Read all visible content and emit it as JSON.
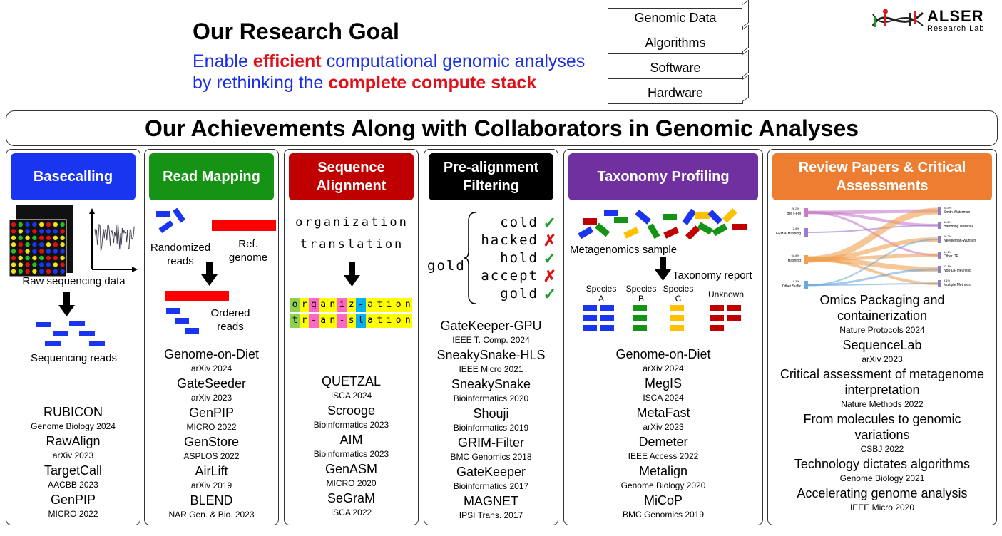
{
  "goal": {
    "title": "Our Research Goal",
    "line1_a": "Enable ",
    "line1_b": "efficient",
    "line1_c": " computational genomic analyses",
    "line2_a": "by rethinking the ",
    "line2_b": "complete compute stack"
  },
  "stack": [
    "Genomic Data",
    "Algorithms",
    "Software",
    "Hardware"
  ],
  "logo": {
    "name": "ALSER",
    "sub": "Research Lab"
  },
  "banner": "Our Achievements Along with Collaborators in Genomic Analyses",
  "colors": {
    "blue": "#1a35f0",
    "green": "#149314",
    "red": "#c00000",
    "black": "#000000",
    "purple": "#7030a0",
    "orange": "#ed7d31"
  },
  "columns": {
    "basecalling": {
      "title": "Basecalling",
      "labels": {
        "raw": "Raw sequencing data",
        "reads": "Sequencing reads"
      },
      "pubs": [
        {
          "name": "RUBICON",
          "venue": "Genome Biology 2024"
        },
        {
          "name": "RawAlign",
          "venue": "arXiv 2023"
        },
        {
          "name": "TargetCall",
          "venue": "AACBB 2023"
        },
        {
          "name": "GenPIP",
          "venue": "MICRO 2022"
        }
      ]
    },
    "readmapping": {
      "title": "Read Mapping",
      "labels": {
        "random": "Randomized\nreads",
        "ref": "Ref.\ngenome",
        "ordered": "Ordered\nreads"
      },
      "pubs": [
        {
          "name": "Genome-on-Diet",
          "venue": "arXiv 2024"
        },
        {
          "name": "GateSeeder",
          "venue": "arXiv 2023"
        },
        {
          "name": "GenPIP",
          "venue": "MICRO 2022"
        },
        {
          "name": "GenStore",
          "venue": "ASPLOS 2022"
        },
        {
          "name": "AirLift",
          "venue": "arXiv 2019"
        },
        {
          "name": "BLEND",
          "venue": "NAR Gen. & Bio. 2023"
        }
      ]
    },
    "alignment": {
      "title": "Sequence\nAlignment",
      "words": [
        "organization",
        "translation"
      ],
      "row1": [
        "o",
        "r",
        "g",
        "a",
        "n",
        "i",
        "z",
        "-",
        "a",
        "t",
        "i",
        "o",
        "n"
      ],
      "row2": [
        "t",
        "r",
        "-",
        "a",
        "n",
        "-",
        "s",
        "l",
        "a",
        "t",
        "i",
        "o",
        "n"
      ],
      "pubs": [
        {
          "name": "QUETZAL",
          "venue": "ISCA 2024"
        },
        {
          "name": "Scrooge",
          "venue": "Bioinformatics 2023"
        },
        {
          "name": "AIM",
          "venue": "Bioinformatics 2023"
        },
        {
          "name": "GenASM",
          "venue": "MICRO 2020"
        },
        {
          "name": "SeGraM",
          "venue": "ISCA 2022"
        }
      ]
    },
    "prealign": {
      "title": "Pre-alignment\nFiltering",
      "query": "gold",
      "candidates": [
        {
          "word": "cold",
          "mark": "✓",
          "ok": true
        },
        {
          "word": "hacked",
          "mark": "✗",
          "ok": false
        },
        {
          "word": "hold",
          "mark": "✓",
          "ok": true
        },
        {
          "word": "accept",
          "mark": "✗",
          "ok": false
        },
        {
          "word": "gold",
          "mark": "✓",
          "ok": true
        }
      ],
      "pubs": [
        {
          "name": "GateKeeper-GPU",
          "venue": "IEEE T. Comp. 2024"
        },
        {
          "name": "SneakySnake-HLS",
          "venue": "IEEE Micro 2021"
        },
        {
          "name": "SneakySnake",
          "venue": "Bioinformatics 2020"
        },
        {
          "name": "Shouji",
          "venue": "Bioinformatics 2019"
        },
        {
          "name": "GRIM-Filter",
          "venue": "BMC Genomics 2018"
        },
        {
          "name": "GateKeeper",
          "venue": "Bioinformatics 2017"
        },
        {
          "name": "MAGNET",
          "venue": "IPSI Trans. 2017"
        }
      ]
    },
    "taxonomy": {
      "title": "Taxonomy Profiling",
      "labels": {
        "sample": "Metagenomics sample",
        "report": "Taxonomy report",
        "unknown": "Unknown"
      },
      "species": [
        {
          "l1": "Species",
          "l2": "A"
        },
        {
          "l1": "Species",
          "l2": "B"
        },
        {
          "l1": "Species",
          "l2": "C"
        }
      ],
      "pubs": [
        {
          "name": "Genome-on-Diet",
          "venue": "arXiv 2024"
        },
        {
          "name": "MegIS",
          "venue": "ISCA 2024"
        },
        {
          "name": "MetaFast",
          "venue": "arXiv 2023"
        },
        {
          "name": "Demeter",
          "venue": "IEEE Access 2022"
        },
        {
          "name": "Metalign",
          "venue": "Genome Biology 2020"
        },
        {
          "name": "MiCoP",
          "venue": "BMC Genomics 2019"
        }
      ]
    },
    "review": {
      "title": "Review Papers & Critical\nAssessments",
      "sankey": {
        "left": [
          "BWT-FM",
          "BWT-FM & Hashing",
          "Hashing",
          "Other Suffix"
        ],
        "left_pct": [
          "26.2%",
          "2.8%",
          "60.8%",
          "10.3%"
        ],
        "right": [
          "Smith-Waterman",
          "Hamming Distance",
          "Needleman-Wunsch",
          "Other DP",
          "Non-DP Heuristic",
          "Multiple Methods"
        ],
        "right_pct": [
          "28.5%",
          "16.2%",
          "16.2%",
          "14.1%",
          "13.1%",
          "9.1%"
        ]
      },
      "pubs": [
        {
          "name": "Omics Packaging and containerization",
          "venue": "Nature Protocols 2024"
        },
        {
          "name": "SequenceLab",
          "venue": "arXiv 2023"
        },
        {
          "name": "Critical assessment of metagenome interpretation",
          "venue": "Nature Methods 2022"
        },
        {
          "name": "From molecules to genomic variations",
          "venue": "CSBJ 2022"
        },
        {
          "name": "Technology dictates algorithms",
          "venue": "Genome Biology 2021"
        },
        {
          "name": "Accelerating genome analysis",
          "venue": "IEEE Micro 2020"
        }
      ]
    }
  }
}
